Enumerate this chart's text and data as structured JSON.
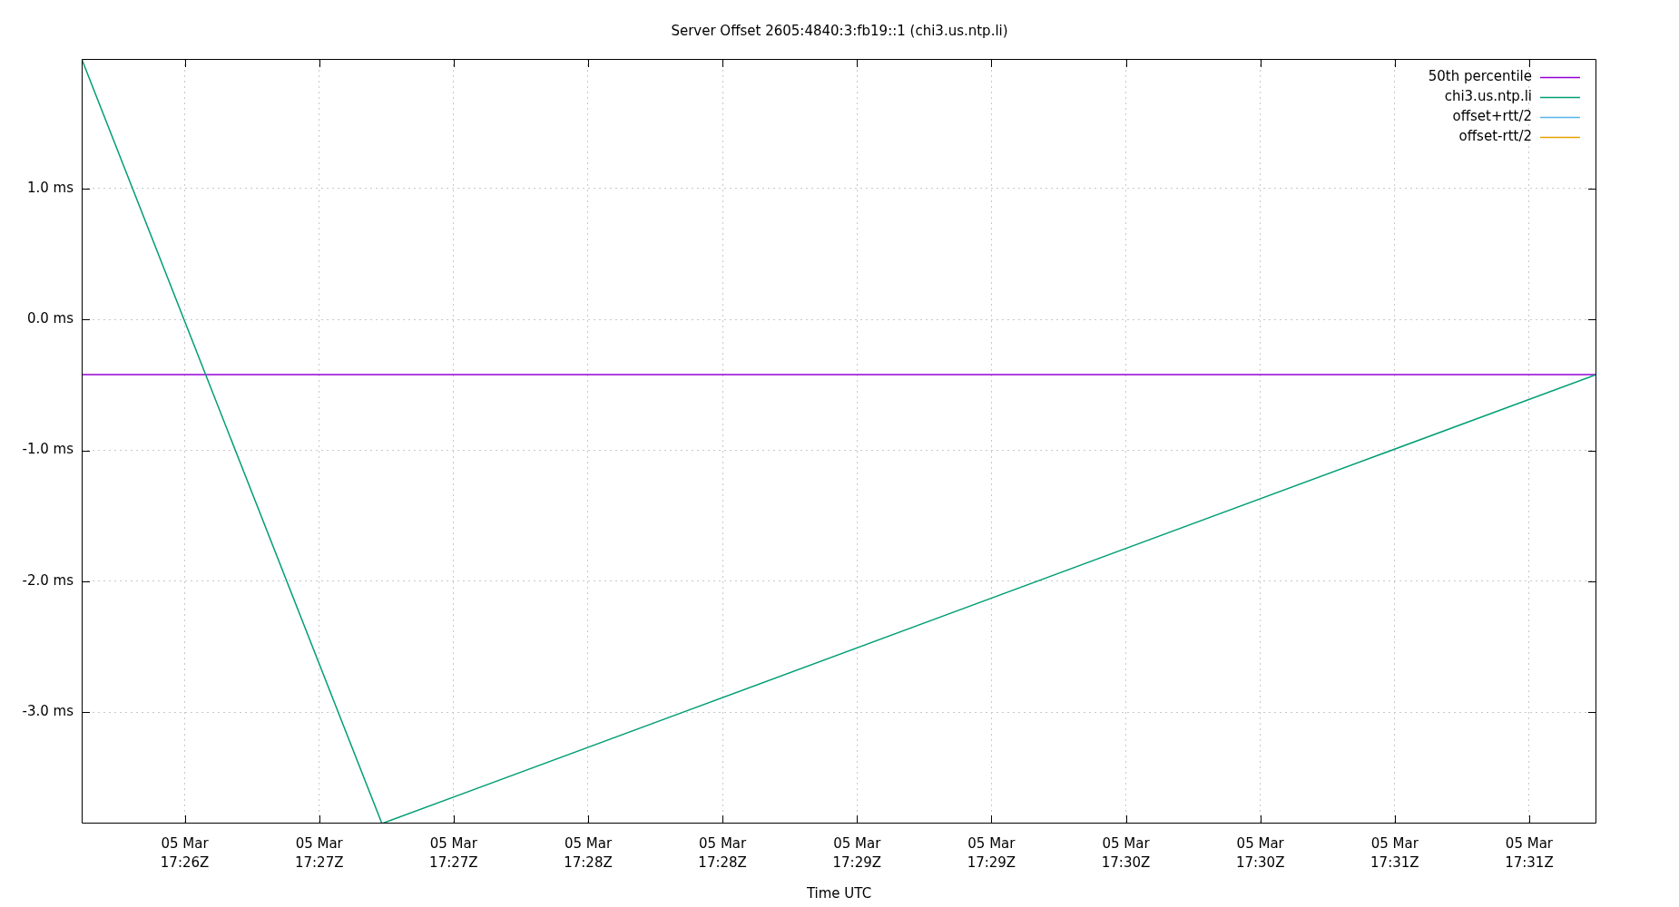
{
  "chart_data": {
    "type": "line",
    "title": "Server Offset 2605:4840:3:fb19::1 (chi3.us.ntp.li)",
    "xlabel": "Time UTC",
    "x": [
      "--03-05T17:26:07",
      "--03-05T17:27:14",
      "--03-05T17:31:45"
    ],
    "series": [
      {
        "name": "50th percentile",
        "color": "#9400d3",
        "x": [
          "--03-05T17:26:07",
          "--03-05T17:31:45"
        ],
        "values": [
          -0.42,
          -0.42
        ]
      },
      {
        "name": "chi3.us.ntp.li",
        "color": "#009e73",
        "values": [
          1.99,
          -3.85,
          -0.42
        ]
      },
      {
        "name": "offset+rtt/2",
        "color": "#56b4e9",
        "values": [
          null,
          null,
          null
        ]
      },
      {
        "name": "offset-rtt/2",
        "color": "#e69f00",
        "values": [
          null,
          null,
          null
        ]
      }
    ],
    "xlim": [
      "--03-05T17:26:07",
      "--03-05T17:31:45"
    ],
    "xticks": [
      {
        "value": "--03-05T17:26:30",
        "label": "05 Mar\n17:26Z"
      },
      {
        "value": "--03-05T17:27:00",
        "label": "05 Mar\n17:27Z"
      },
      {
        "value": "--03-05T17:27:30",
        "label": "05 Mar\n17:27Z"
      },
      {
        "value": "--03-05T17:28:00",
        "label": "05 Mar\n17:28Z"
      },
      {
        "value": "--03-05T17:28:30",
        "label": "05 Mar\n17:28Z"
      },
      {
        "value": "--03-05T17:29:00",
        "label": "05 Mar\n17:29Z"
      },
      {
        "value": "--03-05T17:29:30",
        "label": "05 Mar\n17:29Z"
      },
      {
        "value": "--03-05T17:30:00",
        "label": "05 Mar\n17:30Z"
      },
      {
        "value": "--03-05T17:30:30",
        "label": "05 Mar\n17:30Z"
      },
      {
        "value": "--03-05T17:31:00",
        "label": "05 Mar\n17:31Z"
      },
      {
        "value": "--03-05T17:31:30",
        "label": "05 Mar\n17:31Z"
      }
    ],
    "ylim": [
      -3.85,
      1.99
    ],
    "yticks": [
      {
        "value": -3,
        "label": "-3.0 ms"
      },
      {
        "value": -2,
        "label": "-2.0 ms"
      },
      {
        "value": -1,
        "label": "-1.0 ms"
      },
      {
        "value": 0,
        "label": "0.0 ms"
      },
      {
        "value": 1,
        "label": "1.0 ms"
      }
    ],
    "grid": true,
    "legend": "top right",
    "marker": "none",
    "line_style": "solid"
  }
}
